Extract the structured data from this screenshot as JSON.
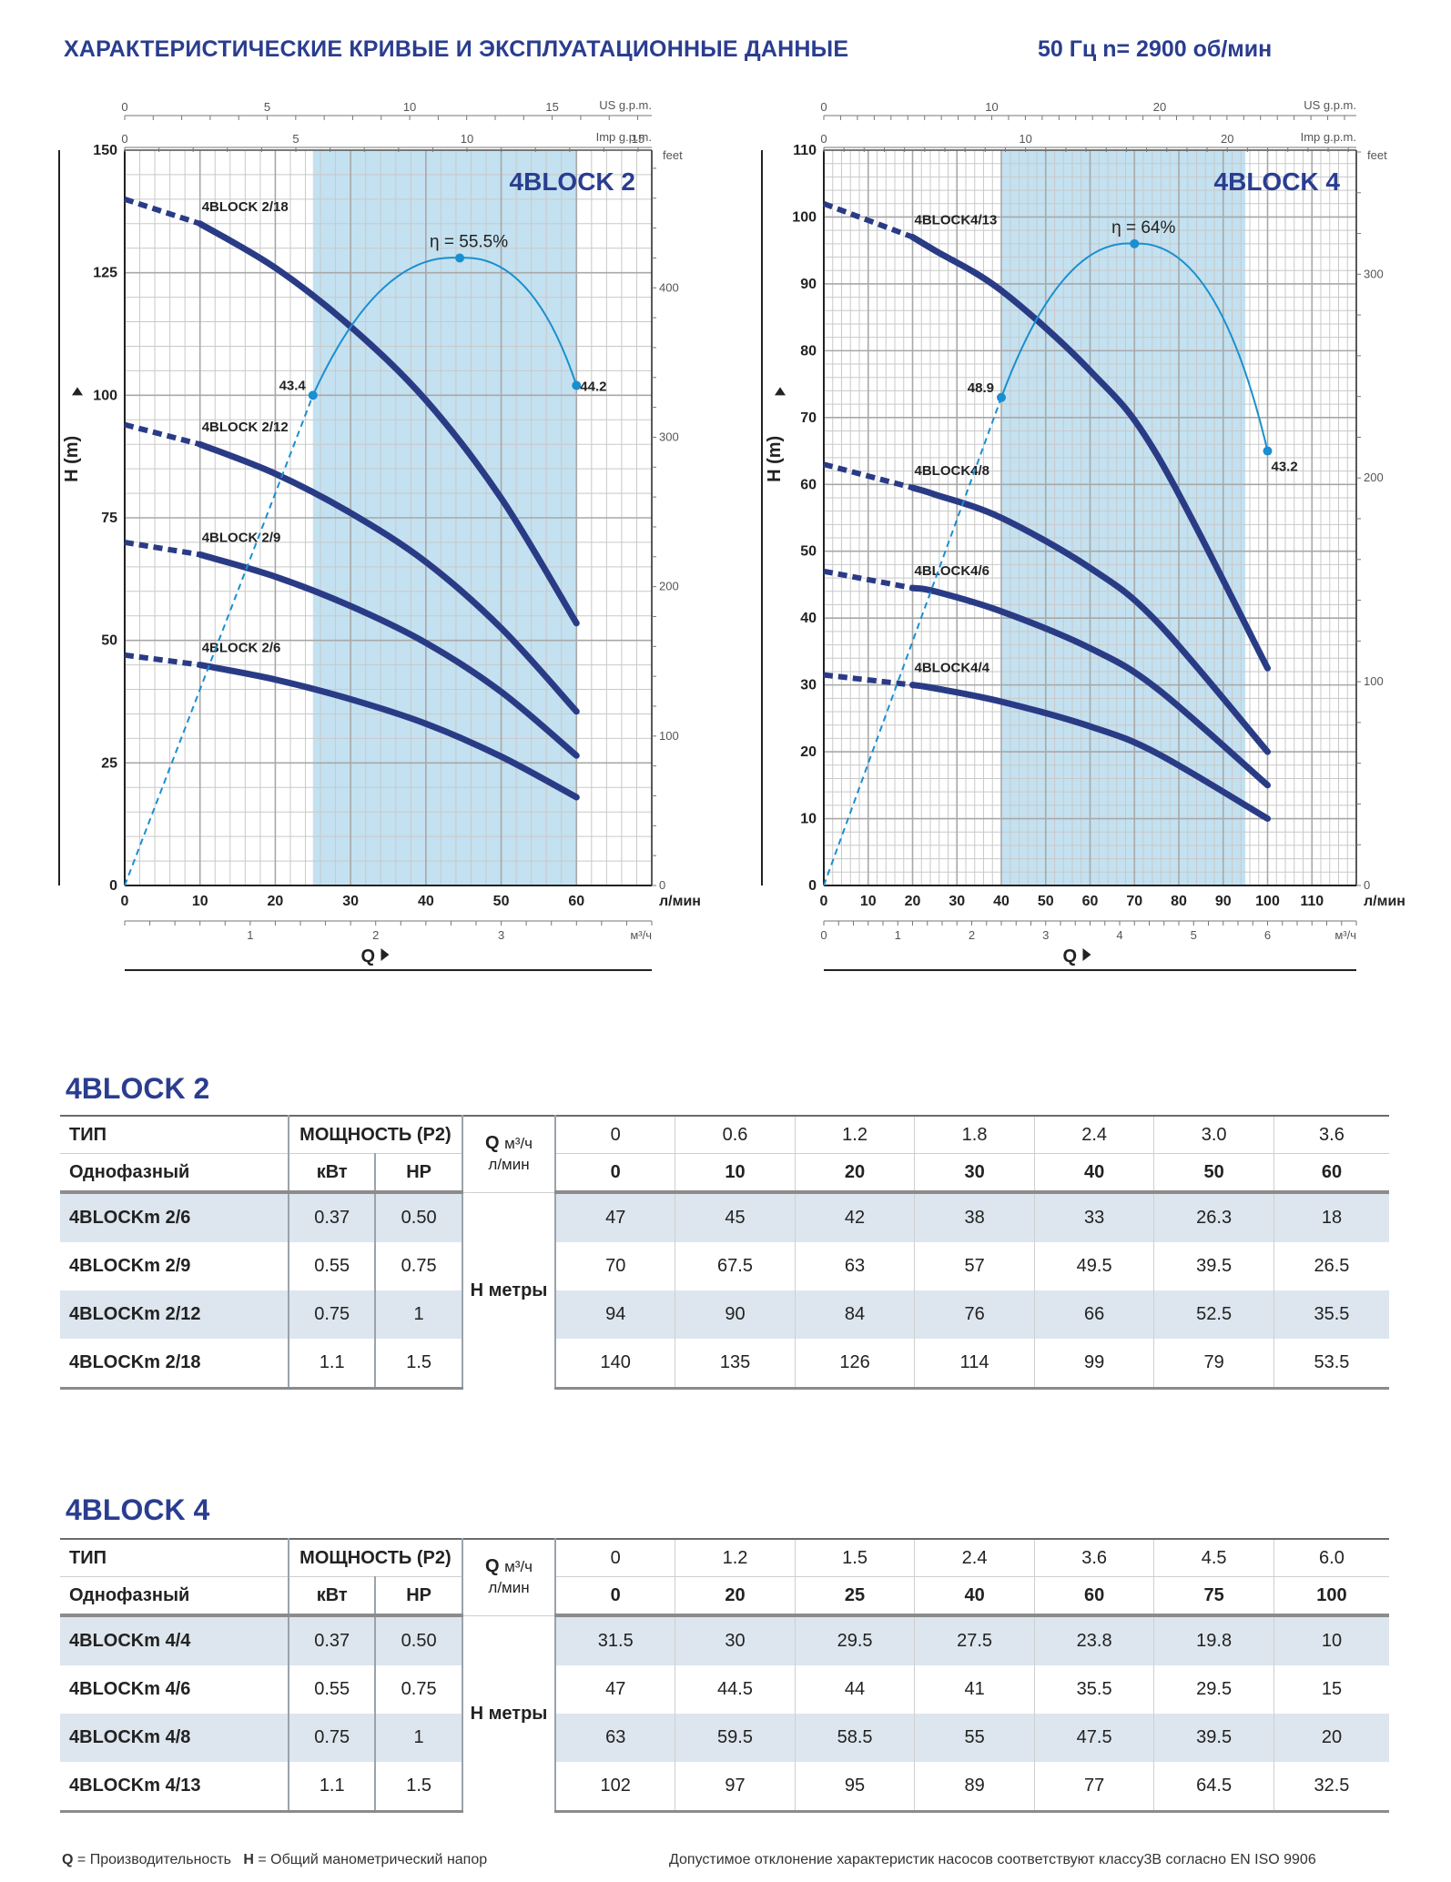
{
  "title": "ХАРАКТЕРИСТИЧЕСКИЕ КРИВЫЕ И ЭКСПЛУАТАЦИОННЫЕ ДАННЫЕ",
  "subtitle": "50 Гц  n= 2900 об/мин",
  "chart_data": [
    {
      "type": "line",
      "title": "4BLOCK 2",
      "xlabel": "Q",
      "ylabel": "H (m)",
      "x_unit": "л/мин",
      "xlim": [
        0,
        70
      ],
      "ylim": [
        0,
        150
      ],
      "x_ticks": [
        0,
        10,
        20,
        30,
        40,
        50,
        60
      ],
      "y_ticks": [
        0,
        25,
        50,
        75,
        100,
        125,
        150
      ],
      "secondary_axes": {
        "top1": {
          "label": "US g.p.m.",
          "ticks": [
            0,
            5,
            10,
            15
          ]
        },
        "top2": {
          "label": "Imp g.p.m.",
          "ticks": [
            0,
            5,
            10,
            15
          ]
        },
        "bottom": {
          "label": "м³/ч",
          "ticks": [
            1,
            2,
            3
          ]
        },
        "right": {
          "label": "feet",
          "ticks": [
            0,
            100,
            200,
            300,
            400
          ]
        }
      },
      "operating_range": [
        25,
        60
      ],
      "series": [
        {
          "name": "4BLOCK 2/18",
          "x": [
            0,
            10,
            20,
            30,
            40,
            50,
            60
          ],
          "y": [
            140,
            135,
            126,
            114,
            99,
            79,
            53.5
          ]
        },
        {
          "name": "4BLOCK 2/12",
          "x": [
            0,
            10,
            20,
            30,
            40,
            50,
            60
          ],
          "y": [
            94,
            90,
            84,
            76,
            66,
            52.5,
            35.5
          ]
        },
        {
          "name": "4BLOCK 2/9",
          "x": [
            0,
            10,
            20,
            30,
            40,
            50,
            60
          ],
          "y": [
            70,
            67.5,
            63,
            57,
            49.5,
            39.5,
            26.5
          ]
        },
        {
          "name": "4BLOCK 2/6",
          "x": [
            0,
            10,
            20,
            30,
            40,
            50,
            60
          ],
          "y": [
            47,
            45,
            42,
            38,
            33,
            26.3,
            18
          ]
        }
      ],
      "efficiency": {
        "label": "η = 55.5%",
        "points": [
          {
            "x": 25,
            "y": 100,
            "label": "43.4"
          },
          {
            "x": 44.5,
            "y": 128,
            "label": ""
          },
          {
            "x": 60,
            "y": 102,
            "label": "44.2"
          }
        ]
      }
    },
    {
      "type": "line",
      "title": "4BLOCK 4",
      "xlabel": "Q",
      "ylabel": "H (m)",
      "x_unit": "л/мин",
      "xlim": [
        0,
        120
      ],
      "ylim": [
        0,
        110
      ],
      "x_ticks": [
        0,
        10,
        20,
        30,
        40,
        50,
        60,
        70,
        80,
        90,
        100,
        110
      ],
      "y_ticks": [
        0,
        10,
        20,
        30,
        40,
        50,
        60,
        70,
        80,
        90,
        100,
        110
      ],
      "secondary_axes": {
        "top1": {
          "label": "US g.p.m.",
          "ticks": [
            0,
            10,
            20
          ]
        },
        "top2": {
          "label": "Imp g.p.m.",
          "ticks": [
            0,
            10,
            20
          ]
        },
        "bottom": {
          "label": "м³/ч",
          "ticks": [
            0,
            1,
            2,
            3,
            4,
            5,
            6
          ]
        },
        "right": {
          "label": "feet",
          "ticks": [
            0,
            100,
            200,
            300
          ]
        }
      },
      "operating_range": [
        40,
        95
      ],
      "series": [
        {
          "name": "4BLOCK4/13",
          "x": [
            0,
            20,
            25,
            40,
            60,
            75,
            100
          ],
          "y": [
            102,
            97,
            95,
            89,
            77,
            64.5,
            32.5
          ]
        },
        {
          "name": "4BLOCK4/8",
          "x": [
            0,
            20,
            25,
            40,
            60,
            75,
            100
          ],
          "y": [
            63,
            59.5,
            58.5,
            55,
            47.5,
            39.5,
            20
          ]
        },
        {
          "name": "4BLOCK4/6",
          "x": [
            0,
            20,
            25,
            40,
            60,
            75,
            100
          ],
          "y": [
            47,
            44.5,
            44,
            41,
            35.5,
            29.5,
            15
          ]
        },
        {
          "name": "4BLOCK4/4",
          "x": [
            0,
            20,
            25,
            40,
            60,
            75,
            100
          ],
          "y": [
            31.5,
            30,
            29.5,
            27.5,
            23.8,
            19.8,
            10
          ]
        }
      ],
      "efficiency": {
        "label": "η = 64%",
        "points": [
          {
            "x": 40,
            "y": 73,
            "label": "48.9"
          },
          {
            "x": 70,
            "y": 96,
            "label": ""
          },
          {
            "x": 100,
            "y": 65,
            "label": "43.2"
          }
        ]
      }
    }
  ],
  "tables": [
    {
      "title": "4BLOCK 2",
      "type_label": "ТИП",
      "phase_label": "Однофазный",
      "power_label": "МОЩНОСТЬ (P2)",
      "kw_label": "кВт",
      "hp_label": "HP",
      "q_label": "Q",
      "m3h_unit": "м³/ч",
      "lmin_unit": "л/мин",
      "h_label": "H метры",
      "q_m3h": [
        "0",
        "0.6",
        "1.2",
        "1.8",
        "2.4",
        "3.0",
        "3.6"
      ],
      "q_lmin": [
        "0",
        "10",
        "20",
        "30",
        "40",
        "50",
        "60"
      ],
      "rows": [
        {
          "type": "4BLOCKm 2/6",
          "kw": "0.37",
          "hp": "0.50",
          "h": [
            "47",
            "45",
            "42",
            "38",
            "33",
            "26.3",
            "18"
          ]
        },
        {
          "type": "4BLOCKm 2/9",
          "kw": "0.55",
          "hp": "0.75",
          "h": [
            "70",
            "67.5",
            "63",
            "57",
            "49.5",
            "39.5",
            "26.5"
          ]
        },
        {
          "type": "4BLOCKm 2/12",
          "kw": "0.75",
          "hp": "1",
          "h": [
            "94",
            "90",
            "84",
            "76",
            "66",
            "52.5",
            "35.5"
          ]
        },
        {
          "type": "4BLOCKm 2/18",
          "kw": "1.1",
          "hp": "1.5",
          "h": [
            "140",
            "135",
            "126",
            "114",
            "99",
            "79",
            "53.5"
          ]
        }
      ]
    },
    {
      "title": "4BLOCK 4",
      "type_label": "ТИП",
      "phase_label": "Однофазный",
      "power_label": "МОЩНОСТЬ (P2)",
      "kw_label": "кВт",
      "hp_label": "HP",
      "q_label": "Q",
      "m3h_unit": "м³/ч",
      "lmin_unit": "л/мин",
      "h_label": "H метры",
      "q_m3h": [
        "0",
        "1.2",
        "1.5",
        "2.4",
        "3.6",
        "4.5",
        "6.0"
      ],
      "q_lmin": [
        "0",
        "20",
        "25",
        "40",
        "60",
        "75",
        "100"
      ],
      "rows": [
        {
          "type": "4BLOCKm 4/4",
          "kw": "0.37",
          "hp": "0.50",
          "h": [
            "31.5",
            "30",
            "29.5",
            "27.5",
            "23.8",
            "19.8",
            "10"
          ]
        },
        {
          "type": "4BLOCKm 4/6",
          "kw": "0.55",
          "hp": "0.75",
          "h": [
            "47",
            "44.5",
            "44",
            "41",
            "35.5",
            "29.5",
            "15"
          ]
        },
        {
          "type": "4BLOCKm 4/8",
          "kw": "0.75",
          "hp": "1",
          "h": [
            "63",
            "59.5",
            "58.5",
            "55",
            "47.5",
            "39.5",
            "20"
          ]
        },
        {
          "type": "4BLOCKm 4/13",
          "kw": "1.1",
          "hp": "1.5",
          "h": [
            "102",
            "97",
            "95",
            "89",
            "77",
            "64.5",
            "32.5"
          ]
        }
      ]
    }
  ],
  "footer": {
    "q_key": "Q",
    "q_text": " = Производительность",
    "h_key": "H",
    "h_text": " = Общий манометрический напор",
    "right_text": "Допустимое отклонение характеристик насосов соответствуют классу3B согласно EN ISO 9906"
  },
  "colors": {
    "title": "#2a3d8f",
    "curve": "#2a3b86",
    "efficiency": "#1a8fd0",
    "band": "#b9dced",
    "row_shade": "#dde6ee"
  }
}
